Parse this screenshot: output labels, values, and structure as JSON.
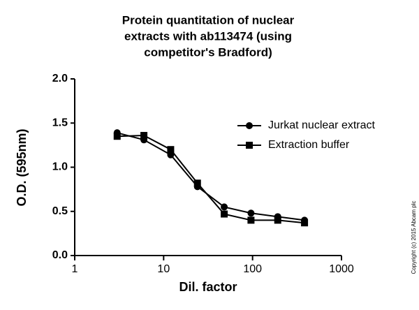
{
  "chart_data": {
    "type": "line",
    "title": [
      "Protein quantitation of nuclear",
      "extracts with ab113474 (using",
      "competitor's Bradford)"
    ],
    "x_label": "Dil. factor",
    "y_label": "O.D. (595nm)",
    "x": [
      3,
      6,
      12,
      24,
      48,
      96,
      192,
      384
    ],
    "series": [
      {
        "name": "Jurkat nuclear extract",
        "color": "#000000",
        "marker": "circle",
        "values": [
          1.39,
          1.31,
          1.14,
          0.78,
          0.55,
          0.48,
          0.44,
          0.4
        ]
      },
      {
        "name": "Extraction buffer",
        "color": "#000000",
        "marker": "square",
        "values": [
          1.35,
          1.36,
          1.2,
          0.82,
          0.47,
          0.4,
          0.4,
          0.37
        ]
      }
    ],
    "xscale": "log",
    "xlim": [
      1,
      1000
    ],
    "xticks": [
      1,
      10,
      100,
      1000
    ],
    "ylim": [
      0,
      2
    ],
    "yticks": [
      {
        "value": 0,
        "label": "0.0"
      },
      {
        "value": 0.5,
        "label": "0.5"
      },
      {
        "value": 1,
        "label": "1.0"
      },
      {
        "value": 1.5,
        "label": "1.5"
      },
      {
        "value": 2,
        "label": "2.0"
      }
    ],
    "legend": "upper right",
    "annotation": "Copyright (c) 2015 Abcam plc"
  }
}
